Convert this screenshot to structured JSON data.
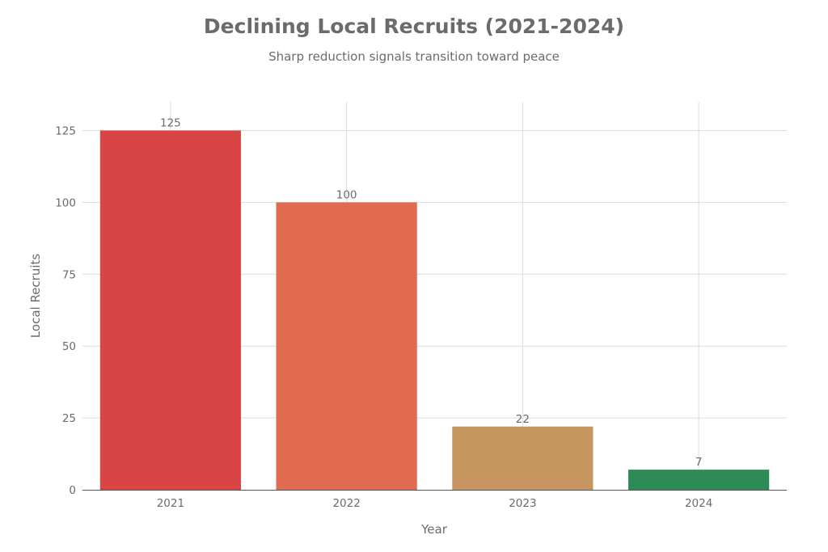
{
  "chart_data": {
    "type": "bar",
    "title": "Declining Local Recruits (2021-2024)",
    "subtitle": "Sharp reduction signals transition toward peace",
    "xlabel": "Year",
    "ylabel": "Local Recruits",
    "categories": [
      "2021",
      "2022",
      "2023",
      "2024"
    ],
    "values": [
      125,
      100,
      22,
      7
    ],
    "data_labels": [
      "125",
      "100",
      "22",
      "7"
    ],
    "bar_colors": [
      "#d94545",
      "#e06b50",
      "#c79660",
      "#2e8b57"
    ],
    "ylim": [
      0,
      135
    ],
    "yticks": [
      0,
      25,
      50,
      75,
      100,
      125
    ],
    "grid": true,
    "legend": "none"
  }
}
